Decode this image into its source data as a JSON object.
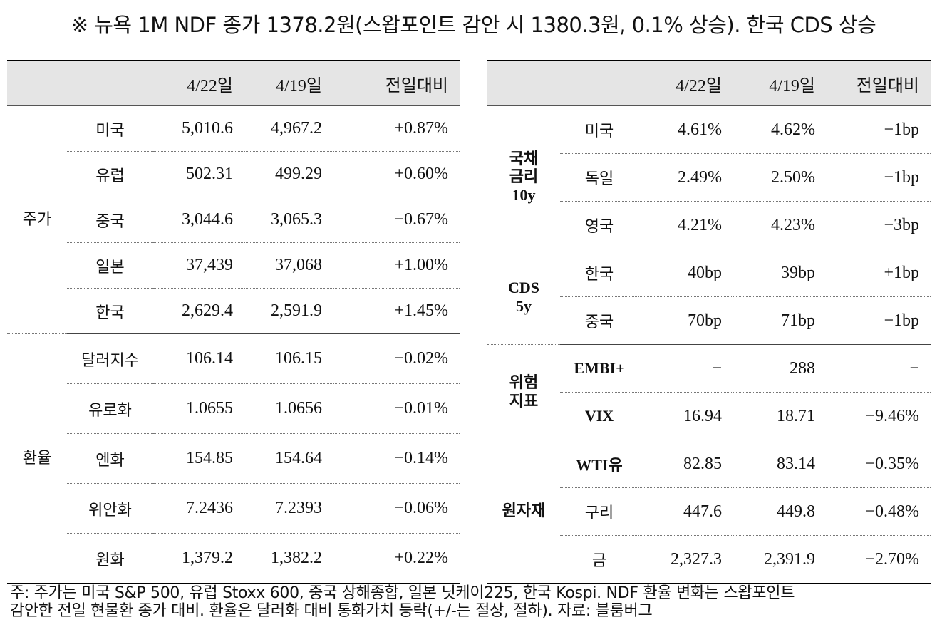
{
  "title": "※ 뉴욕 1M NDF 종가 1378.2원(스왑포인트 감안 시 1380.3원, 0.1% 상승). 한국 CDS 상승",
  "headers": {
    "d1": "4/22일",
    "d2": "4/19일",
    "chg": "전일대비"
  },
  "left": {
    "stocks": {
      "group": "주가",
      "rows": [
        {
          "name": "미국",
          "d1": "5,010.6",
          "d2": "4,967.2",
          "chg": "+0.87%"
        },
        {
          "name": "유럽",
          "d1": "502.31",
          "d2": "499.29",
          "chg": "+0.60%"
        },
        {
          "name": "중국",
          "d1": "3,044.6",
          "d2": "3,065.3",
          "chg": "−0.67%"
        },
        {
          "name": "일본",
          "d1": "37,439",
          "d2": "37,068",
          "chg": "+1.00%"
        },
        {
          "name": "한국",
          "d1": "2,629.4",
          "d2": "2,591.9",
          "chg": "+1.45%"
        }
      ]
    },
    "fx": {
      "group": "환율",
      "rows": [
        {
          "name": "달러지수",
          "d1": "106.14",
          "d2": "106.15",
          "chg": "−0.02%"
        },
        {
          "name": "유로화",
          "d1": "1.0655",
          "d2": "1.0656",
          "chg": "−0.01%"
        },
        {
          "name": "엔화",
          "d1": "154.85",
          "d2": "154.64",
          "chg": "−0.14%"
        },
        {
          "name": "위안화",
          "d1": "7.2436",
          "d2": "7.2393",
          "chg": "−0.06%"
        },
        {
          "name": "원화",
          "d1": "1,379.2",
          "d2": "1,382.2",
          "chg": "+0.22%"
        }
      ]
    }
  },
  "right": {
    "bonds": {
      "group_l1": "국채",
      "group_l2": "금리",
      "group_l3": "10y",
      "rows": [
        {
          "name": "미국",
          "d1": "4.61%",
          "d2": "4.62%",
          "chg": "−1bp"
        },
        {
          "name": "독일",
          "d1": "2.49%",
          "d2": "2.50%",
          "chg": "−1bp"
        },
        {
          "name": "영국",
          "d1": "4.21%",
          "d2": "4.23%",
          "chg": "−3bp"
        }
      ]
    },
    "cds": {
      "group_l1": "CDS",
      "group_l2": "5y",
      "rows": [
        {
          "name": "한국",
          "d1": "40bp",
          "d2": "39bp",
          "chg": "+1bp"
        },
        {
          "name": "중국",
          "d1": "70bp",
          "d2": "71bp",
          "chg": "−1bp"
        }
      ]
    },
    "risk": {
      "group_l1": "위험",
      "group_l2": "지표",
      "rows": [
        {
          "name": "EMBI+",
          "d1": "−",
          "d2": "288",
          "chg": "−"
        },
        {
          "name": "VIX",
          "d1": "16.94",
          "d2": "18.71",
          "chg": "−9.46%"
        }
      ]
    },
    "commod": {
      "group": "원자재",
      "rows": [
        {
          "name": "WTI유",
          "d1": "82.85",
          "d2": "83.14",
          "chg": "−0.35%"
        },
        {
          "name": "구리",
          "d1": "447.6",
          "d2": "449.8",
          "chg": "−0.48%"
        },
        {
          "name": "금",
          "d1": "2,327.3",
          "d2": "2,391.9",
          "chg": "−2.70%"
        }
      ]
    }
  },
  "note_line1": "주: 주가는 미국 S&P 500, 유럽 Stoxx 600, 중국 상해종합, 일본 닛케이225, 한국 Kospi. NDF 환율 변화는 스왑포인트",
  "note_line2": "감안한 전일 현물환 종가 대비. 환율은 달러화 대비 통화가치 등락(+/-는 절상, 절하). 자료: 블룸버그"
}
